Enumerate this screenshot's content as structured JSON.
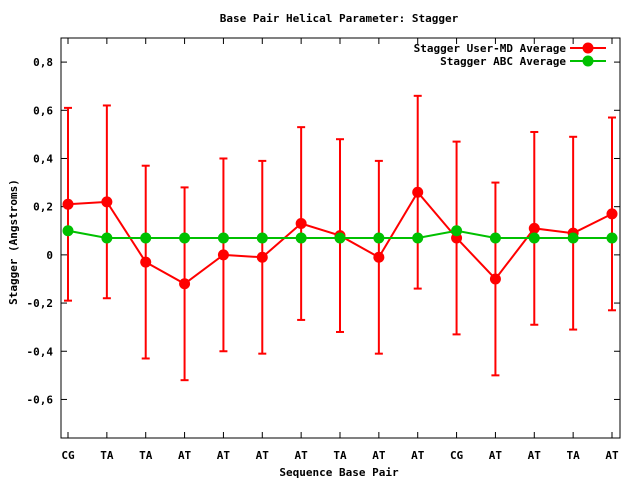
{
  "chart_data": {
    "type": "line",
    "title": "Base Pair Helical Parameter: Stagger",
    "xlabel": "Sequence Base Pair",
    "ylabel": "Stagger (Angstroms)",
    "categories": [
      "CG",
      "TA",
      "TA",
      "AT",
      "AT",
      "AT",
      "AT",
      "TA",
      "AT",
      "AT",
      "CG",
      "AT",
      "AT",
      "TA",
      "AT"
    ],
    "ylim": [
      -0.76,
      0.9
    ],
    "yticks": [
      -0.6,
      -0.4,
      -0.2,
      0,
      0.2,
      0.4,
      0.6,
      0.8
    ],
    "ytick_labels": [
      "-0,6",
      "-0,4",
      "-0,2",
      "0",
      "0,2",
      "0,4",
      "0,6",
      "0,8"
    ],
    "legend_position": "top-right",
    "series": [
      {
        "name": "Stagger User-MD Average",
        "color": "#ff0000",
        "values": [
          0.21,
          0.22,
          -0.03,
          -0.12,
          0.0,
          -0.01,
          0.13,
          0.08,
          -0.01,
          0.26,
          0.07,
          -0.1,
          0.11,
          0.09,
          0.17
        ],
        "err_low": [
          -0.19,
          -0.18,
          -0.43,
          -0.52,
          -0.4,
          -0.41,
          -0.27,
          -0.32,
          -0.41,
          -0.14,
          -0.33,
          -0.5,
          -0.29,
          -0.31,
          -0.23
        ],
        "err_high": [
          0.61,
          0.62,
          0.37,
          0.28,
          0.4,
          0.39,
          0.53,
          0.48,
          0.39,
          0.66,
          0.47,
          0.3,
          0.51,
          0.49,
          0.57
        ]
      },
      {
        "name": "Stagger ABC Average",
        "color": "#00c000",
        "values": [
          0.1,
          0.07,
          0.07,
          0.07,
          0.07,
          0.07,
          0.07,
          0.07,
          0.07,
          0.07,
          0.1,
          0.07,
          0.07,
          0.07,
          0.07
        ]
      }
    ]
  }
}
